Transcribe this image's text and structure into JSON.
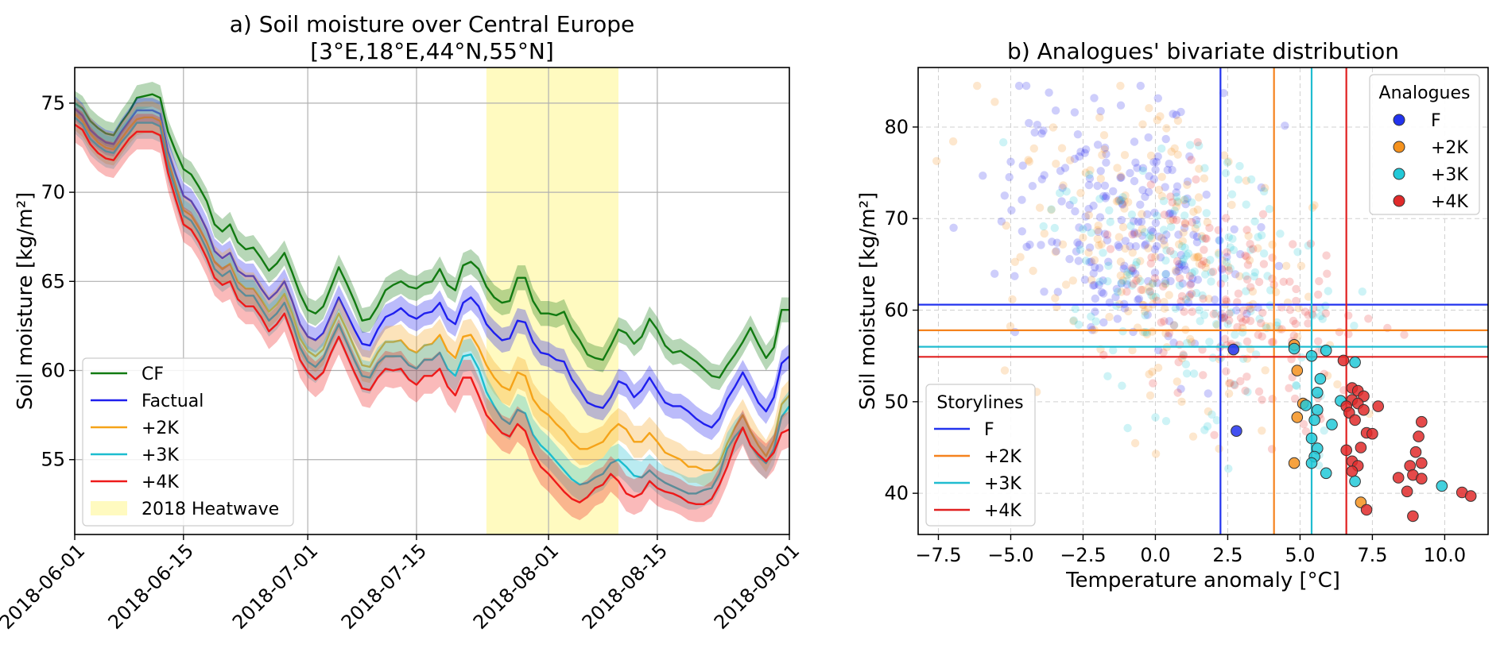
{
  "chart_data": [
    {
      "type": "line",
      "title": "a) Soil moisture over Central Europe",
      "subtitle": "[3°E,18°E,44°N,55°N]",
      "xlabel": "",
      "ylabel": "Soil moisture [kg/m²]",
      "xlim": [
        "2018-06-01",
        "2018-09-01"
      ],
      "ylim": [
        50.8,
        77.0
      ],
      "x_ticks": [
        "2018-06-01",
        "2018-06-15",
        "2018-07-01",
        "2018-07-15",
        "2018-08-01",
        "2018-08-15",
        "2018-09-01"
      ],
      "y_ticks": [
        55,
        60,
        65,
        70,
        75
      ],
      "grid": true,
      "legend_position": "lower-left",
      "shaded_period": {
        "label": "2018 Heatwave",
        "start": "2018-07-24",
        "end": "2018-08-10",
        "color": "#fffac0"
      },
      "x": [
        "2018-06-01",
        "2018-06-02",
        "2018-06-03",
        "2018-06-04",
        "2018-06-05",
        "2018-06-06",
        "2018-06-07",
        "2018-06-08",
        "2018-06-09",
        "2018-06-10",
        "2018-06-11",
        "2018-06-12",
        "2018-06-13",
        "2018-06-14",
        "2018-06-15",
        "2018-06-16",
        "2018-06-17",
        "2018-06-18",
        "2018-06-19",
        "2018-06-20",
        "2018-06-21",
        "2018-06-22",
        "2018-06-23",
        "2018-06-24",
        "2018-06-25",
        "2018-06-26",
        "2018-06-27",
        "2018-06-28",
        "2018-06-29",
        "2018-06-30",
        "2018-07-01",
        "2018-07-02",
        "2018-07-03",
        "2018-07-04",
        "2018-07-05",
        "2018-07-06",
        "2018-07-07",
        "2018-07-08",
        "2018-07-09",
        "2018-07-10",
        "2018-07-11",
        "2018-07-12",
        "2018-07-13",
        "2018-07-14",
        "2018-07-15",
        "2018-07-16",
        "2018-07-17",
        "2018-07-18",
        "2018-07-19",
        "2018-07-20",
        "2018-07-21",
        "2018-07-22",
        "2018-07-23",
        "2018-07-24",
        "2018-07-25",
        "2018-07-26",
        "2018-07-27",
        "2018-07-28",
        "2018-07-29",
        "2018-07-30",
        "2018-07-31",
        "2018-08-01",
        "2018-08-02",
        "2018-08-03",
        "2018-08-04",
        "2018-08-05",
        "2018-08-06",
        "2018-08-07",
        "2018-08-08",
        "2018-08-09",
        "2018-08-10",
        "2018-08-11",
        "2018-08-12",
        "2018-08-13",
        "2018-08-14",
        "2018-08-15",
        "2018-08-16",
        "2018-08-17",
        "2018-08-18",
        "2018-08-19",
        "2018-08-20",
        "2018-08-21",
        "2018-08-22",
        "2018-08-23",
        "2018-08-24",
        "2018-08-25",
        "2018-08-26",
        "2018-08-27",
        "2018-08-28",
        "2018-08-29",
        "2018-08-30",
        "2018-08-31",
        "2018-09-01"
      ],
      "series": [
        {
          "name": "CF",
          "color": "#117a11",
          "band": 0.7,
          "values": [
            75.0,
            74.7,
            74.0,
            73.6,
            73.3,
            73.2,
            73.9,
            74.5,
            75.3,
            75.4,
            75.5,
            75.3,
            73.4,
            72.3,
            71.3,
            71.0,
            70.3,
            69.5,
            68.2,
            67.8,
            68.2,
            67.2,
            66.8,
            66.9,
            66.3,
            65.6,
            66.0,
            66.6,
            65.5,
            64.3,
            63.4,
            63.2,
            63.6,
            64.7,
            65.8,
            64.9,
            63.9,
            62.8,
            62.9,
            63.6,
            64.5,
            64.8,
            65.0,
            64.7,
            64.6,
            64.9,
            65.0,
            65.7,
            64.8,
            64.5,
            65.9,
            66.1,
            65.7,
            64.7,
            64.1,
            63.8,
            63.9,
            65.2,
            65.2,
            63.9,
            63.2,
            63.2,
            63.1,
            63.3,
            62.3,
            61.7,
            60.9,
            60.7,
            60.6,
            61.4,
            62.3,
            62.1,
            61.5,
            61.9,
            62.9,
            62.3,
            61.4,
            61.0,
            61.1,
            60.8,
            60.5,
            60.1,
            59.7,
            59.6,
            60.3,
            60.9,
            61.6,
            62.4,
            61.5,
            60.7,
            61.3,
            63.4,
            63.4
          ]
        },
        {
          "name": "Factual",
          "color": "#1f1fee",
          "band": 0.7,
          "values": [
            74.7,
            74.3,
            73.5,
            73.1,
            72.8,
            72.7,
            73.4,
            74.0,
            74.6,
            74.6,
            74.6,
            74.4,
            72.3,
            71.0,
            69.8,
            69.5,
            68.8,
            67.9,
            66.7,
            66.3,
            66.6,
            65.6,
            65.3,
            65.3,
            64.6,
            64.0,
            64.4,
            65.0,
            63.9,
            62.6,
            61.9,
            61.7,
            62.1,
            63.1,
            64.1,
            63.2,
            62.3,
            61.5,
            61.4,
            62.3,
            63.0,
            63.2,
            63.5,
            63.1,
            62.9,
            63.2,
            63.3,
            63.8,
            62.9,
            62.6,
            63.8,
            64.1,
            63.6,
            62.6,
            62.1,
            61.7,
            61.8,
            62.8,
            62.7,
            61.6,
            61.0,
            60.9,
            60.6,
            60.5,
            59.5,
            58.9,
            58.2,
            58.0,
            57.9,
            58.5,
            59.4,
            59.2,
            58.5,
            58.9,
            59.6,
            58.9,
            58.2,
            58.0,
            58.0,
            57.7,
            57.3,
            57.0,
            56.8,
            57.3,
            58.4,
            59.1,
            59.9,
            59.1,
            58.2,
            57.7,
            58.5,
            60.4,
            60.8
          ]
        },
        {
          "name": "+2K",
          "color": "#f5a319",
          "band": 0.9,
          "values": [
            74.4,
            74.0,
            73.3,
            72.8,
            72.5,
            72.4,
            73.0,
            73.6,
            74.1,
            74.2,
            74.2,
            74.0,
            71.8,
            70.4,
            69.0,
            68.7,
            68.0,
            67.2,
            66.1,
            65.7,
            66.0,
            65.0,
            64.6,
            64.6,
            64.0,
            63.3,
            63.7,
            64.3,
            63.2,
            61.8,
            61.1,
            60.8,
            61.2,
            62.3,
            63.2,
            62.3,
            61.3,
            60.3,
            60.2,
            61.0,
            61.6,
            61.6,
            61.7,
            61.2,
            61.0,
            61.4,
            61.5,
            62.0,
            61.1,
            60.7,
            61.9,
            62.0,
            61.3,
            60.3,
            59.6,
            59.1,
            58.9,
            59.9,
            59.7,
            58.4,
            57.8,
            57.5,
            57.0,
            56.6,
            56.0,
            55.6,
            55.6,
            55.8,
            56.0,
            56.6,
            57.0,
            56.7,
            56.0,
            56.0,
            56.5,
            56.0,
            55.4,
            55.2,
            55.0,
            54.6,
            54.6,
            54.4,
            54.4,
            54.8,
            55.9,
            56.8,
            57.5,
            56.6,
            55.8,
            55.2,
            56.1,
            58.1,
            58.6
          ]
        },
        {
          "name": "+3K",
          "color": "#1cbdcf",
          "band": 0.9,
          "values": [
            74.2,
            73.8,
            73.0,
            72.6,
            72.3,
            72.2,
            72.8,
            73.3,
            73.9,
            73.9,
            73.9,
            73.7,
            71.5,
            70.1,
            68.7,
            68.4,
            67.7,
            66.8,
            65.7,
            65.3,
            65.6,
            64.6,
            64.2,
            64.2,
            63.5,
            62.8,
            63.2,
            63.8,
            62.7,
            61.3,
            60.5,
            60.2,
            60.7,
            61.7,
            62.6,
            61.6,
            60.6,
            59.7,
            59.6,
            60.4,
            60.8,
            60.8,
            60.8,
            60.3,
            60.1,
            60.6,
            60.6,
            61.0,
            60.1,
            59.7,
            60.8,
            60.9,
            60.1,
            58.8,
            58.0,
            57.3,
            57.0,
            57.8,
            57.6,
            56.4,
            55.8,
            55.4,
            54.9,
            54.4,
            53.9,
            53.6,
            53.7,
            54.0,
            54.2,
            54.8,
            55.0,
            54.6,
            54.1,
            54.0,
            54.4,
            54.0,
            53.7,
            53.5,
            53.3,
            53.1,
            53.1,
            53.3,
            53.4,
            54.2,
            55.6,
            56.3,
            56.8,
            55.8,
            55.2,
            54.8,
            55.6,
            57.4,
            58.0
          ]
        },
        {
          "name": "+4K",
          "color": "#ee1a1a",
          "band": 1.0,
          "values": [
            73.8,
            73.5,
            72.7,
            72.2,
            71.9,
            71.8,
            72.4,
            73.0,
            73.4,
            73.4,
            73.4,
            73.2,
            71.1,
            69.6,
            68.2,
            67.9,
            67.2,
            66.3,
            65.2,
            64.8,
            65.0,
            64.0,
            63.6,
            63.6,
            63.0,
            62.2,
            62.6,
            63.2,
            62.0,
            60.6,
            59.9,
            59.5,
            59.9,
            61.0,
            61.9,
            60.9,
            59.9,
            59.0,
            58.9,
            59.6,
            60.1,
            60.0,
            60.1,
            59.5,
            59.2,
            59.7,
            59.7,
            60.1,
            59.1,
            58.6,
            59.6,
            59.6,
            58.6,
            57.5,
            57.0,
            56.5,
            56.3,
            57.0,
            56.6,
            55.4,
            54.6,
            54.2,
            53.7,
            53.2,
            52.8,
            52.6,
            52.9,
            53.4,
            53.6,
            54.2,
            53.8,
            53.1,
            52.9,
            53.1,
            53.8,
            53.4,
            53.2,
            53.1,
            52.9,
            52.6,
            52.5,
            52.5,
            52.8,
            53.6,
            54.6,
            55.9,
            56.8,
            55.8,
            55.3,
            54.9,
            55.4,
            56.5,
            56.7
          ]
        }
      ],
      "legend": [
        {
          "label": "CF",
          "color": "#117a11"
        },
        {
          "label": "Factual",
          "color": "#1f1fee"
        },
        {
          "label": "+2K",
          "color": "#f5a319"
        },
        {
          "label": "+3K",
          "color": "#1cbdcf"
        },
        {
          "label": "+4K",
          "color": "#ee1a1a"
        },
        {
          "label": "2018 Heatwave",
          "color": "#fffac0"
        }
      ]
    },
    {
      "type": "scatter",
      "title": "b)  Analogues' bivariate distribution",
      "xlabel": "Temperature anomaly [°C]",
      "ylabel": "Soil moisture [kg/m²]",
      "xlim": [
        -8.2,
        11.5
      ],
      "ylim": [
        35.5,
        86.5
      ],
      "x_ticks": [
        "−7.5",
        "−5.0",
        "−2.5",
        "0.0",
        "2.5",
        "5.0",
        "7.5",
        "10.0"
      ],
      "x_tick_values": [
        -7.5,
        -5.0,
        -2.5,
        0.0,
        2.5,
        5.0,
        7.5,
        10.0
      ],
      "y_ticks": [
        40,
        50,
        60,
        70,
        80
      ],
      "grid": true,
      "background_clouds": [
        {
          "name": "F",
          "color": "#2222ee",
          "cx": -1.2,
          "cy": 69.5,
          "sx": 2.1,
          "sy": 6.5,
          "n": 230
        },
        {
          "name": "+2K",
          "color": "#f5921e",
          "cx": 0.2,
          "cy": 66.0,
          "sx": 2.6,
          "sy": 8.0,
          "n": 200
        },
        {
          "name": "+3K",
          "color": "#22c9d8",
          "cx": 1.3,
          "cy": 63.0,
          "sx": 2.4,
          "sy": 7.5,
          "n": 180
        },
        {
          "name": "+4K",
          "color": "#e83030",
          "cx": 3.0,
          "cy": 61.0,
          "sx": 2.2,
          "sy": 6.5,
          "n": 160
        }
      ],
      "analogues": [
        {
          "name": "F",
          "color": "#2233ee",
          "points": [
            [
              2.7,
              55.7
            ],
            [
              2.8,
              46.8
            ]
          ]
        },
        {
          "name": "+2K",
          "color": "#f5921e",
          "points": [
            [
              4.8,
              56.2
            ],
            [
              4.9,
              53.4
            ],
            [
              5.1,
              49.8
            ],
            [
              4.9,
              48.3
            ],
            [
              4.8,
              43.3
            ],
            [
              7.1,
              39.0
            ]
          ]
        },
        {
          "name": "+3K",
          "color": "#22c9d8",
          "points": [
            [
              4.8,
              55.8
            ],
            [
              5.9,
              55.6
            ],
            [
              5.4,
              55.0
            ],
            [
              5.7,
              52.5
            ],
            [
              5.6,
              51.0
            ],
            [
              6.4,
              50.1
            ],
            [
              5.2,
              49.6
            ],
            [
              5.6,
              49.1
            ],
            [
              5.5,
              48.0
            ],
            [
              6.1,
              47.5
            ],
            [
              5.4,
              46.0
            ],
            [
              5.6,
              44.9
            ],
            [
              5.5,
              44.0
            ],
            [
              5.4,
              43.3
            ],
            [
              5.9,
              42.2
            ],
            [
              6.9,
              41.3
            ],
            [
              9.9,
              40.8
            ],
            [
              6.9,
              54.3
            ]
          ]
        },
        {
          "name": "+4K",
          "color": "#e02a2a",
          "points": [
            [
              6.5,
              54.5
            ],
            [
              6.8,
              51.5
            ],
            [
              7.0,
              51.2
            ],
            [
              7.2,
              50.6
            ],
            [
              6.8,
              50.2
            ],
            [
              7.0,
              49.8
            ],
            [
              6.6,
              49.5
            ],
            [
              7.2,
              49.1
            ],
            [
              7.7,
              49.5
            ],
            [
              6.7,
              48.8
            ],
            [
              6.9,
              48.0
            ],
            [
              7.3,
              46.6
            ],
            [
              7.5,
              46.5
            ],
            [
              7.1,
              45.0
            ],
            [
              6.6,
              44.7
            ],
            [
              6.8,
              43.5
            ],
            [
              7.0,
              43.0
            ],
            [
              6.8,
              42.4
            ],
            [
              8.8,
              43.0
            ],
            [
              9.2,
              47.8
            ],
            [
              9.1,
              46.2
            ],
            [
              9.0,
              44.5
            ],
            [
              9.2,
              43.3
            ],
            [
              8.9,
              42.0
            ],
            [
              8.4,
              41.7
            ],
            [
              9.2,
              41.6
            ],
            [
              8.7,
              40.2
            ],
            [
              10.6,
              40.1
            ],
            [
              10.9,
              39.7
            ],
            [
              8.9,
              37.5
            ],
            [
              7.3,
              38.2
            ]
          ]
        }
      ],
      "storylines": [
        {
          "name": "F",
          "color": "#2233ee",
          "x": 2.25,
          "y": 60.6
        },
        {
          "name": "+2K",
          "color": "#f5821e",
          "x": 4.1,
          "y": 57.8
        },
        {
          "name": "+3K",
          "color": "#20bcd0",
          "x": 5.4,
          "y": 56.0
        },
        {
          "name": "+4K",
          "color": "#e02020",
          "x": 6.6,
          "y": 54.9
        }
      ],
      "legend_analogues": {
        "title": "Analogues",
        "position": "upper-right",
        "entries": [
          {
            "label": "F",
            "color": "#2233ee"
          },
          {
            "label": "+2K",
            "color": "#f5921e"
          },
          {
            "label": "+3K",
            "color": "#22c9d8"
          },
          {
            "label": "+4K",
            "color": "#e02a2a"
          }
        ]
      },
      "legend_storylines": {
        "title": "Storylines",
        "position": "lower-left",
        "entries": [
          {
            "label": "F",
            "color": "#2233ee"
          },
          {
            "label": "+2K",
            "color": "#f5821e"
          },
          {
            "label": "+3K",
            "color": "#20bcd0"
          },
          {
            "label": "+4K",
            "color": "#e02020"
          }
        ]
      }
    }
  ]
}
